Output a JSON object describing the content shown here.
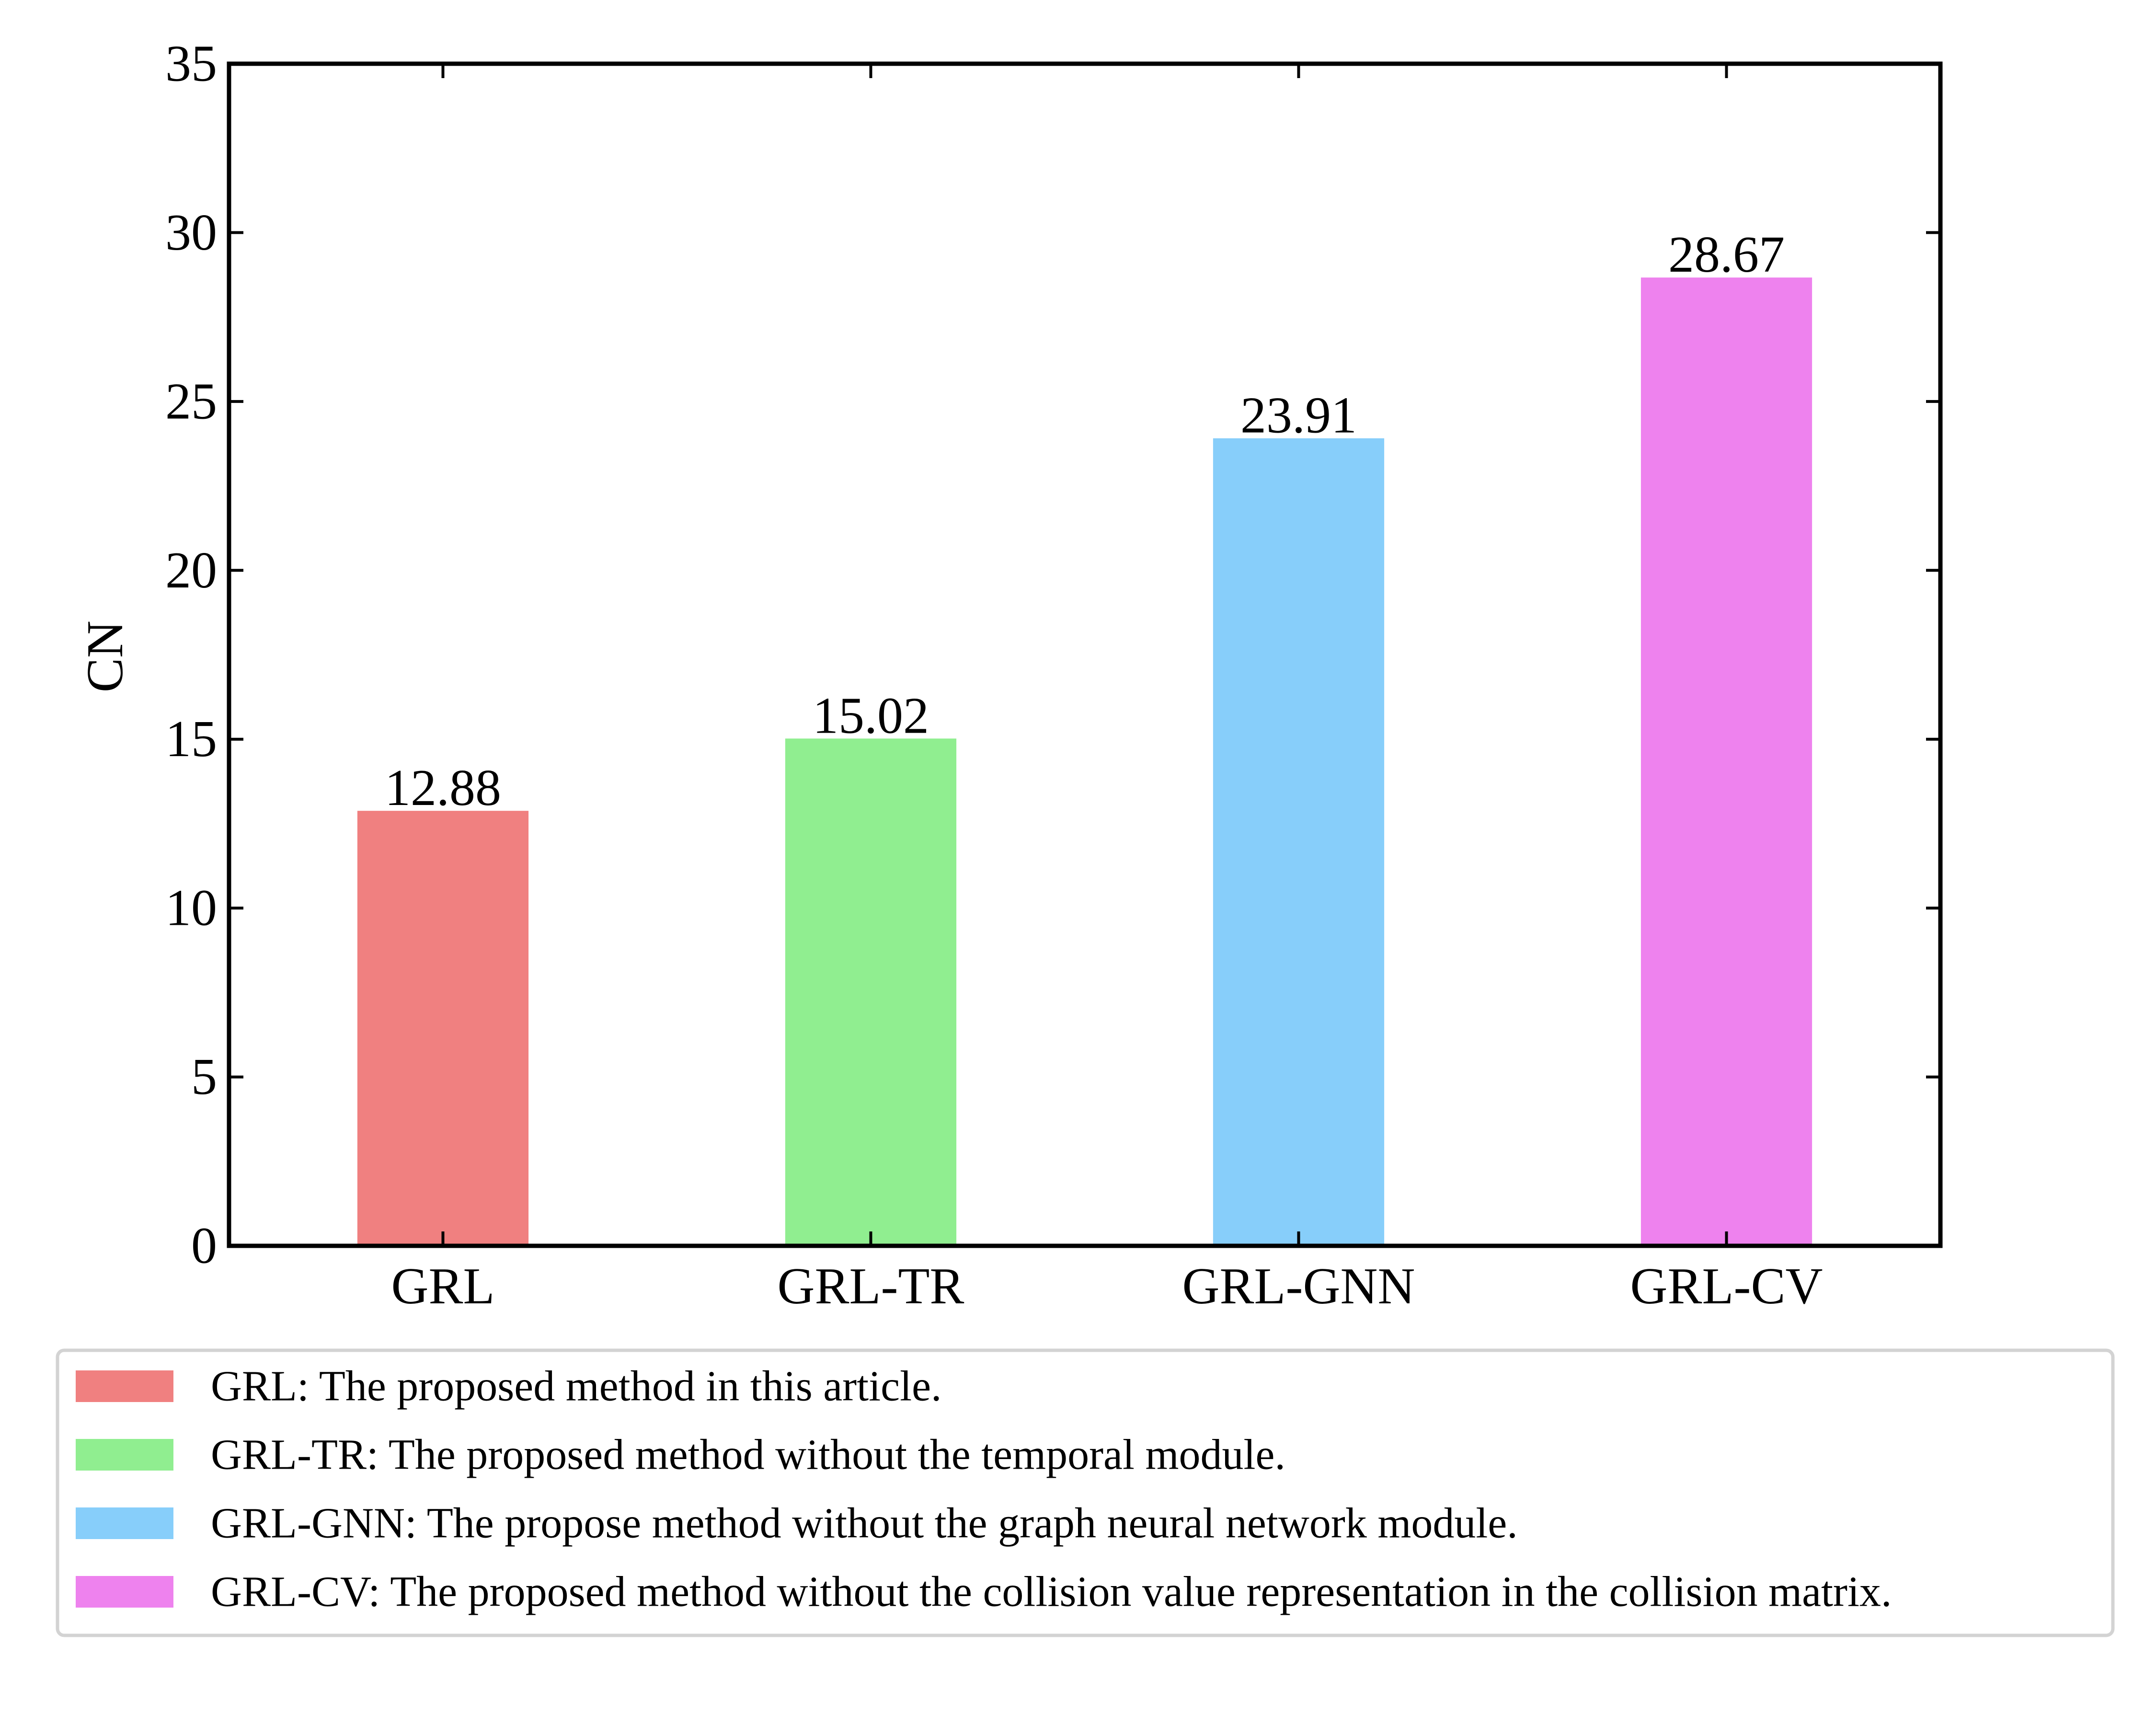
{
  "chart_data": {
    "type": "bar",
    "categories": [
      "GRL",
      "GRL-TR",
      "GRL-GNN",
      "GRL-CV"
    ],
    "values": [
      12.88,
      15.02,
      23.91,
      28.67
    ],
    "value_labels": [
      "12.88",
      "15.02",
      "23.91",
      "28.67"
    ],
    "colors": [
      "#f08080",
      "#90ee90",
      "#87cefa",
      "#ee82ee"
    ],
    "title": "",
    "xlabel": "",
    "ylabel": "CN",
    "ylim": [
      0,
      35
    ],
    "yticks": [
      0,
      5,
      10,
      15,
      20,
      25,
      30,
      35
    ],
    "grid": false,
    "legend": {
      "placement": "below",
      "entries": [
        "GRL: The proposed method in this article.",
        "GRL-TR: The proposed method without the temporal module.",
        "GRL-GNN: The propose method without the graph neural network module.",
        "GRL-CV: The proposed method without the collision value representation in the collision matrix."
      ]
    }
  }
}
